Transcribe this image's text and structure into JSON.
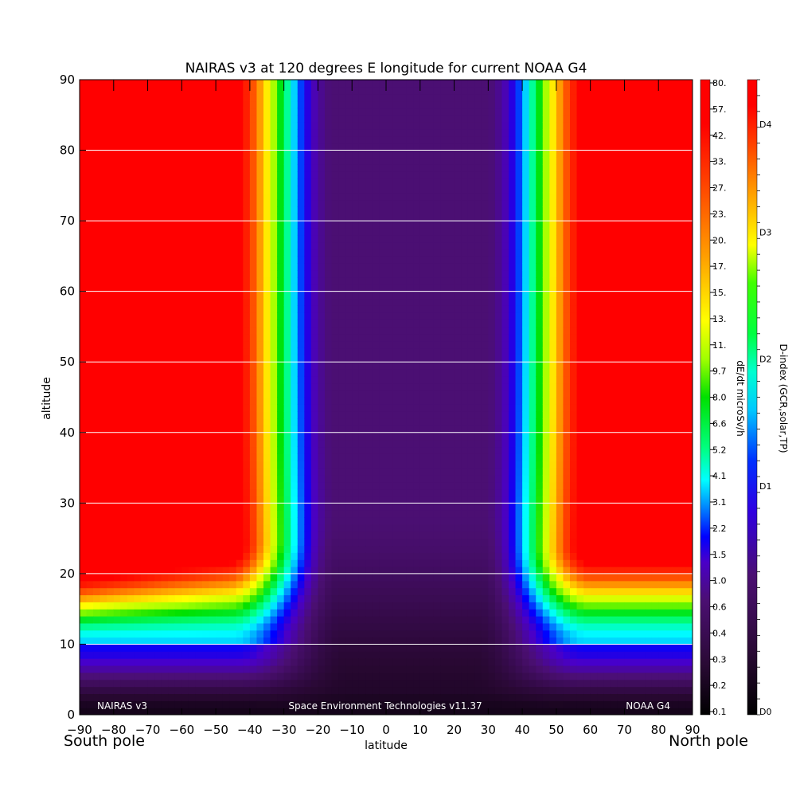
{
  "chart_data": {
    "type": "heatmap",
    "title": "NAIRAS v3 at 120 degrees E longitude for current NOAA G4",
    "xlabel": "latitude",
    "ylabel": "altitude",
    "xlim": [
      -90,
      90
    ],
    "ylim": [
      0,
      90
    ],
    "x_ticks": [
      -90,
      -80,
      -70,
      -60,
      -50,
      -40,
      -30,
      -20,
      -10,
      0,
      10,
      20,
      30,
      40,
      50,
      60,
      70,
      80,
      90
    ],
    "y_ticks": [
      0,
      10,
      20,
      30,
      40,
      50,
      60,
      70,
      80,
      90
    ],
    "x_tick_labels": [
      "−90",
      "−80",
      "−70",
      "−60",
      "−50",
      "−40",
      "−30",
      "−20",
      "−10",
      "0",
      "10",
      "20",
      "30",
      "40",
      "50",
      "60",
      "70",
      "80",
      "90"
    ],
    "grid": true,
    "pole_labels": {
      "left": "South pole",
      "right": "North pole"
    },
    "footer": {
      "left": "NAIRAS v3",
      "center": "Space Environment Technologies v11.37",
      "right": "NOAA G4"
    },
    "colorbar_dose": {
      "label": "dE/dt microSv/h",
      "ticks": [
        "80.",
        "57.",
        "42.",
        "33.",
        "27.",
        "23.",
        "20.",
        "17.",
        "15.",
        "13.",
        "11.",
        "9.7",
        "8.0",
        "6.6",
        "5.2",
        "4.1",
        "3.1",
        "2.2",
        "1.5",
        "1.0",
        "0.6",
        "0.4",
        "0.3",
        "0.2",
        "0.1"
      ]
    },
    "colorbar_dindex": {
      "label": "D-index (GCR,solar,TP)",
      "ticks": [
        "D4",
        "D3",
        "D2",
        "D1",
        "D0"
      ],
      "tick_values": [
        4.65,
        3.8,
        2.8,
        1.8,
        0
      ]
    },
    "field_description": {
      "polar_cap_lat_south": -42,
      "polar_cap_lat_north": 56,
      "cutoff_altitude_km_south_edge": 21,
      "cutoff_altitude_km_north_edge": 24
    },
    "colors": {
      "palette": [
        "#000000",
        "#2a0a35",
        "#4b0f72",
        "#4a00c8",
        "#0000ff",
        "#0090ff",
        "#00ffff",
        "#00ff80",
        "#00e000",
        "#a0ff00",
        "#ffff00",
        "#ffa000",
        "#ff4000",
        "#ff0000"
      ]
    }
  }
}
